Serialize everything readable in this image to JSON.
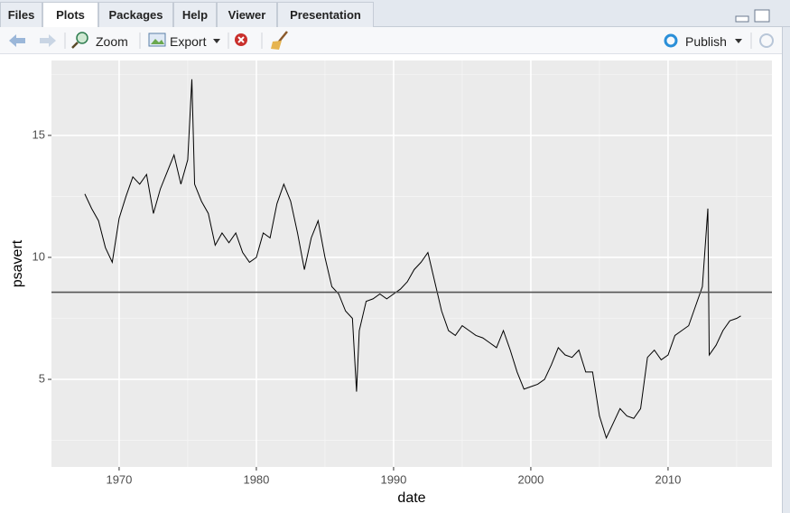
{
  "tabs": [
    "Files",
    "Plots",
    "Packages",
    "Help",
    "Viewer",
    "Presentation"
  ],
  "active_tab": 1,
  "toolbar": {
    "zoom": "Zoom",
    "export": "Export",
    "publish": "Publish"
  },
  "chart_data": {
    "type": "line",
    "x_label": "date",
    "y_label": "psavert",
    "color": "#000000",
    "hline": 8.57,
    "hline_color": "#555555",
    "xlim": [
      1965.07,
      2017.57
    ],
    "ylim": [
      1.41,
      18.07
    ],
    "xticks": [
      1970,
      1980,
      1990,
      2000,
      2010
    ],
    "yticks": [
      5,
      10,
      15
    ],
    "xminor": [
      1965,
      1975,
      1985,
      1995,
      2005,
      2015
    ],
    "yminor": [
      2.5,
      7.5,
      12.5,
      17.5
    ],
    "grid": true,
    "x": [
      1967.5,
      1968.0,
      1968.5,
      1969.0,
      1969.5,
      1970.0,
      1970.5,
      1971.0,
      1971.5,
      1972.0,
      1972.5,
      1973.0,
      1973.5,
      1974.0,
      1974.5,
      1975.0,
      1975.3,
      1975.5,
      1976.0,
      1976.5,
      1977.0,
      1977.5,
      1978.0,
      1978.5,
      1979.0,
      1979.5,
      1980.0,
      1980.5,
      1981.0,
      1981.5,
      1982.0,
      1982.5,
      1983.0,
      1983.5,
      1984.0,
      1984.5,
      1985.0,
      1985.5,
      1986.0,
      1986.5,
      1987.0,
      1987.3,
      1987.5,
      1988.0,
      1988.5,
      1989.0,
      1989.5,
      1990.0,
      1990.5,
      1991.0,
      1991.5,
      1992.0,
      1992.5,
      1993.0,
      1993.5,
      1994.0,
      1994.5,
      1995.0,
      1995.5,
      1996.0,
      1996.5,
      1997.0,
      1997.5,
      1998.0,
      1998.5,
      1999.0,
      1999.5,
      2000.0,
      2000.5,
      2001.0,
      2001.5,
      2002.0,
      2002.5,
      2003.0,
      2003.5,
      2004.0,
      2004.5,
      2005.0,
      2005.5,
      2006.0,
      2006.5,
      2007.0,
      2007.5,
      2008.0,
      2008.5,
      2009.0,
      2009.5,
      2010.0,
      2010.5,
      2011.0,
      2011.5,
      2012.0,
      2012.5,
      2012.9,
      2013.0,
      2013.5,
      2014.0,
      2014.5,
      2015.0,
      2015.3
    ],
    "values": [
      12.6,
      12.0,
      11.5,
      10.4,
      9.8,
      11.6,
      12.5,
      13.3,
      13.0,
      13.4,
      11.8,
      12.8,
      13.5,
      14.2,
      13.0,
      14.0,
      17.3,
      13.0,
      12.3,
      11.8,
      10.5,
      11.0,
      10.6,
      11.0,
      10.2,
      9.8,
      10.0,
      11.0,
      10.8,
      12.2,
      13.0,
      12.3,
      11.0,
      9.5,
      10.8,
      11.5,
      10.0,
      8.8,
      8.5,
      7.8,
      7.5,
      4.5,
      7.0,
      8.2,
      8.3,
      8.5,
      8.3,
      8.5,
      8.7,
      9.0,
      9.5,
      9.8,
      10.2,
      9.0,
      7.8,
      7.0,
      6.8,
      7.2,
      7.0,
      6.8,
      6.7,
      6.5,
      6.3,
      7.0,
      6.2,
      5.3,
      4.6,
      4.7,
      4.8,
      5.0,
      5.6,
      6.3,
      6.0,
      5.9,
      6.2,
      5.3,
      5.3,
      3.5,
      2.6,
      3.2,
      3.8,
      3.5,
      3.4,
      3.8,
      5.9,
      6.2,
      5.8,
      6.0,
      6.8,
      7.0,
      7.2,
      8.0,
      8.8,
      12.0,
      6.0,
      6.4,
      7.0,
      7.4,
      7.5,
      7.6
    ]
  }
}
